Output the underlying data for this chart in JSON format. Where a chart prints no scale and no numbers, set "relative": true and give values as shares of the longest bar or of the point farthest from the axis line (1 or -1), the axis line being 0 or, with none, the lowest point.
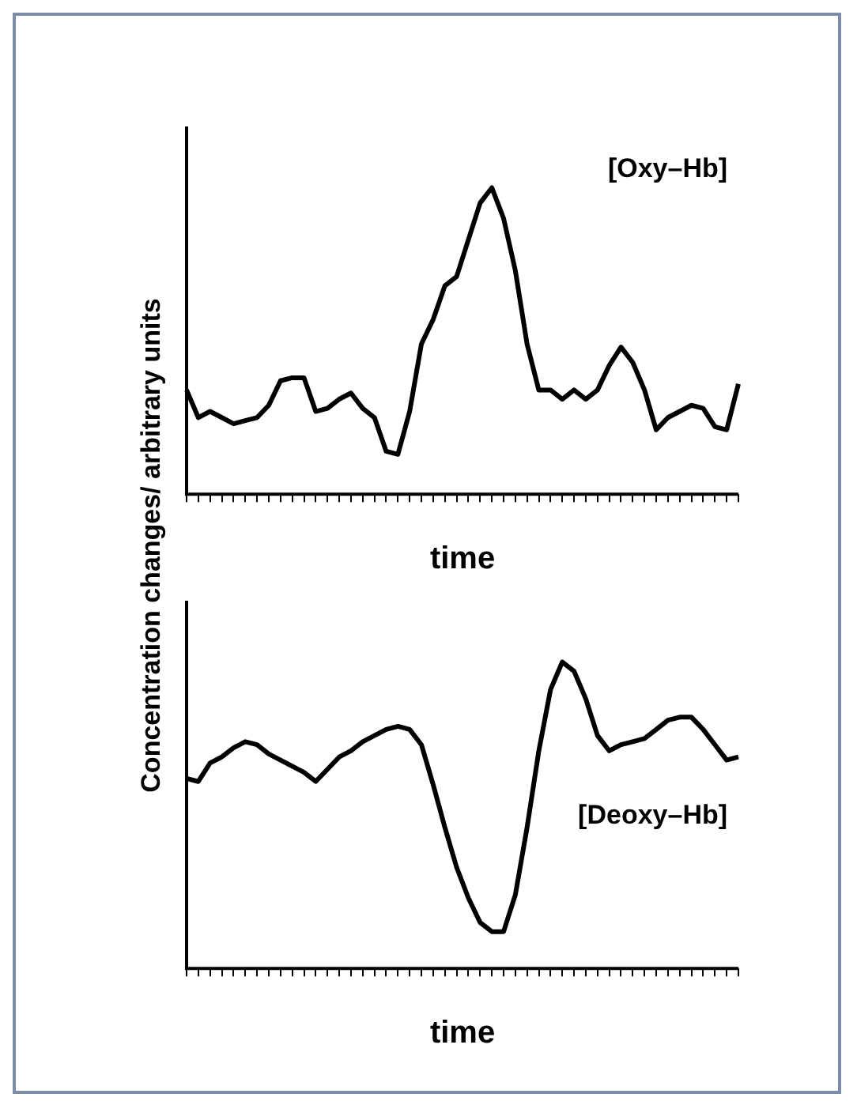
{
  "chart_data": [
    {
      "type": "line",
      "ylabel": "Concentration changes/ arbitrary units",
      "xlabel": "time",
      "annotations": [
        "[Oxy–Hb]"
      ],
      "relative": true,
      "marker": "none",
      "categories": [
        null,
        null,
        null,
        null,
        null,
        null,
        null,
        null,
        null,
        null,
        null,
        null,
        null,
        null,
        null,
        null,
        null,
        null,
        null,
        null,
        null,
        null,
        null,
        null,
        null,
        null,
        null,
        null,
        null,
        null,
        null,
        null,
        null,
        null,
        null,
        null,
        null,
        null,
        null,
        null,
        null,
        null,
        null,
        null,
        null,
        null,
        null,
        null
      ],
      "series": [
        {
          "color": "#000000",
          "values": [
            0.34,
            0.25,
            0.27,
            0.25,
            0.23,
            0.24,
            0.25,
            0.29,
            0.37,
            0.38,
            0.38,
            0.27,
            0.28,
            0.31,
            0.33,
            0.28,
            0.25,
            0.14,
            0.13,
            0.27,
            0.49,
            0.57,
            0.68,
            0.71,
            0.83,
            0.95,
            1,
            0.9,
            0.73,
            0.49,
            0.34,
            0.34,
            0.31,
            0.34,
            0.31,
            0.34,
            0.42,
            0.48,
            0.43,
            0.34,
            0.21,
            0.25,
            0.27,
            0.29,
            0.28,
            0.22,
            0.21,
            0.36
          ]
        }
      ]
    },
    {
      "type": "line",
      "xlabel": "time",
      "annotations": [
        "[Deoxy–Hb]"
      ],
      "relative": true,
      "marker": "none",
      "categories": [
        null,
        null,
        null,
        null,
        null,
        null,
        null,
        null,
        null,
        null,
        null,
        null,
        null,
        null,
        null,
        null,
        null,
        null,
        null,
        null,
        null,
        null,
        null,
        null,
        null,
        null,
        null,
        null,
        null,
        null,
        null,
        null,
        null,
        null,
        null,
        null,
        null,
        null,
        null,
        null,
        null,
        null,
        null,
        null,
        null,
        null,
        null,
        null
      ],
      "series": [
        {
          "color": "#000000",
          "values": [
            0.62,
            0.61,
            0.67,
            0.69,
            0.72,
            0.74,
            0.73,
            0.7,
            0.68,
            0.66,
            0.64,
            0.61,
            0.65,
            0.69,
            0.71,
            0.74,
            0.76,
            0.78,
            0.79,
            0.78,
            0.73,
            0.6,
            0.46,
            0.33,
            0.23,
            0.15,
            0.12,
            0.12,
            0.24,
            0.46,
            0.71,
            0.91,
            1,
            0.97,
            0.88,
            0.76,
            0.71,
            0.73,
            0.74,
            0.75,
            0.78,
            0.81,
            0.82,
            0.82,
            0.78,
            0.73,
            0.68,
            0.69
          ]
        }
      ]
    }
  ]
}
